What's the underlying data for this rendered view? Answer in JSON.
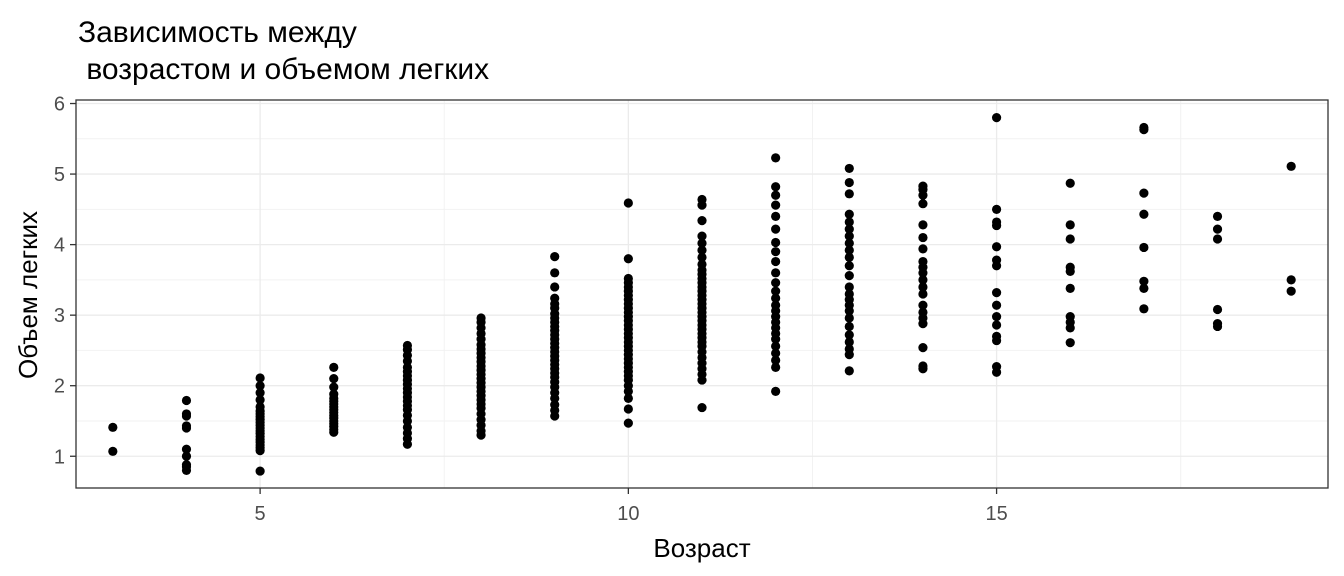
{
  "chart_data": {
    "type": "scatter",
    "title_lines": [
      "Зависимость между",
      " возрастом и объемом легких"
    ],
    "xlabel": "Возраст",
    "ylabel": "Объем легких",
    "xlim": [
      2.5,
      19.5
    ],
    "ylim": [
      0.55,
      6.05
    ],
    "x_ticks": [
      5,
      10,
      15
    ],
    "y_ticks": [
      1,
      2,
      3,
      4,
      5,
      6
    ],
    "grid": true,
    "point_color": "#000000",
    "points": [
      {
        "age": 3,
        "values": [
          1.07,
          1.41
        ]
      },
      {
        "age": 4,
        "values": [
          0.8,
          0.85,
          0.88,
          1.0,
          1.1,
          1.4,
          1.43,
          1.57,
          1.6,
          1.79
        ]
      },
      {
        "age": 5,
        "values": [
          0.79,
          1.08,
          1.12,
          1.16,
          1.2,
          1.24,
          1.28,
          1.32,
          1.36,
          1.4,
          1.44,
          1.48,
          1.52,
          1.56,
          1.6,
          1.64,
          1.7,
          1.8,
          1.9,
          2.0,
          2.11
        ]
      },
      {
        "age": 6,
        "values": [
          1.34,
          1.38,
          1.42,
          1.46,
          1.5,
          1.54,
          1.58,
          1.62,
          1.66,
          1.7,
          1.74,
          1.78,
          1.82,
          1.88,
          1.98,
          2.1,
          2.26
        ]
      },
      {
        "age": 7,
        "values": [
          1.17,
          1.25,
          1.33,
          1.41,
          1.5,
          1.58,
          1.66,
          1.72,
          1.78,
          1.84,
          1.9,
          1.96,
          2.02,
          2.08,
          2.14,
          2.2,
          2.26,
          2.35,
          2.43,
          2.51,
          2.57
        ]
      },
      {
        "age": 8,
        "values": [
          1.3,
          1.36,
          1.44,
          1.52,
          1.6,
          1.68,
          1.74,
          1.8,
          1.86,
          1.92,
          1.98,
          2.04,
          2.1,
          2.16,
          2.22,
          2.28,
          2.34,
          2.4,
          2.46,
          2.52,
          2.58,
          2.66,
          2.74,
          2.82,
          2.9,
          2.96
        ]
      },
      {
        "age": 9,
        "values": [
          1.57,
          1.65,
          1.73,
          1.82,
          1.9,
          1.98,
          2.05,
          2.12,
          2.18,
          2.24,
          2.3,
          2.36,
          2.42,
          2.48,
          2.54,
          2.6,
          2.66,
          2.72,
          2.78,
          2.84,
          2.9,
          2.96,
          3.02,
          3.1,
          3.16,
          3.24,
          3.4,
          3.6,
          3.83
        ]
      },
      {
        "age": 10,
        "values": [
          1.47,
          1.67,
          1.82,
          1.92,
          2.0,
          2.08,
          2.14,
          2.2,
          2.26,
          2.32,
          2.38,
          2.44,
          2.5,
          2.56,
          2.62,
          2.68,
          2.74,
          2.8,
          2.86,
          2.92,
          2.98,
          3.04,
          3.1,
          3.16,
          3.22,
          3.28,
          3.34,
          3.4,
          3.46,
          3.52,
          3.8,
          4.59
        ]
      },
      {
        "age": 11,
        "values": [
          1.69,
          2.08,
          2.16,
          2.24,
          2.32,
          2.4,
          2.48,
          2.56,
          2.62,
          2.68,
          2.74,
          2.8,
          2.86,
          2.92,
          2.98,
          3.04,
          3.1,
          3.16,
          3.22,
          3.28,
          3.34,
          3.4,
          3.46,
          3.52,
          3.58,
          3.64,
          3.72,
          3.82,
          3.92,
          4.02,
          4.12,
          4.34,
          4.56,
          4.64
        ]
      },
      {
        "age": 12,
        "values": [
          1.92,
          2.26,
          2.36,
          2.46,
          2.56,
          2.66,
          2.74,
          2.82,
          2.9,
          2.98,
          3.06,
          3.14,
          3.24,
          3.34,
          3.46,
          3.6,
          3.76,
          3.9,
          4.03,
          4.22,
          4.4,
          4.56,
          4.7,
          4.82,
          5.23
        ]
      },
      {
        "age": 13,
        "values": [
          2.21,
          2.44,
          2.52,
          2.62,
          2.72,
          2.84,
          2.96,
          3.06,
          3.14,
          3.22,
          3.3,
          3.4,
          3.56,
          3.7,
          3.82,
          3.92,
          4.02,
          4.12,
          4.22,
          4.32,
          4.43,
          4.72,
          4.88,
          5.08
        ]
      },
      {
        "age": 14,
        "values": [
          2.24,
          2.28,
          2.54,
          2.88,
          2.96,
          3.04,
          3.14,
          3.3,
          3.4,
          3.5,
          3.6,
          3.68,
          3.76,
          3.94,
          4.1,
          4.28,
          4.58,
          4.7,
          4.78,
          4.83
        ]
      },
      {
        "age": 15,
        "values": [
          2.19,
          2.27,
          2.64,
          2.7,
          2.86,
          2.98,
          3.14,
          3.32,
          3.7,
          3.78,
          3.97,
          4.27,
          4.32,
          4.5,
          5.8
        ]
      },
      {
        "age": 16,
        "values": [
          2.61,
          2.82,
          2.9,
          2.98,
          3.38,
          3.62,
          3.68,
          4.08,
          4.28,
          4.87
        ]
      },
      {
        "age": 17,
        "values": [
          3.09,
          3.38,
          3.48,
          3.96,
          4.43,
          4.73,
          5.63,
          5.66
        ]
      },
      {
        "age": 18,
        "values": [
          2.84,
          2.88,
          3.08,
          4.08,
          4.22,
          4.4
        ]
      },
      {
        "age": 19,
        "values": [
          3.34,
          3.5,
          5.11
        ]
      }
    ]
  }
}
